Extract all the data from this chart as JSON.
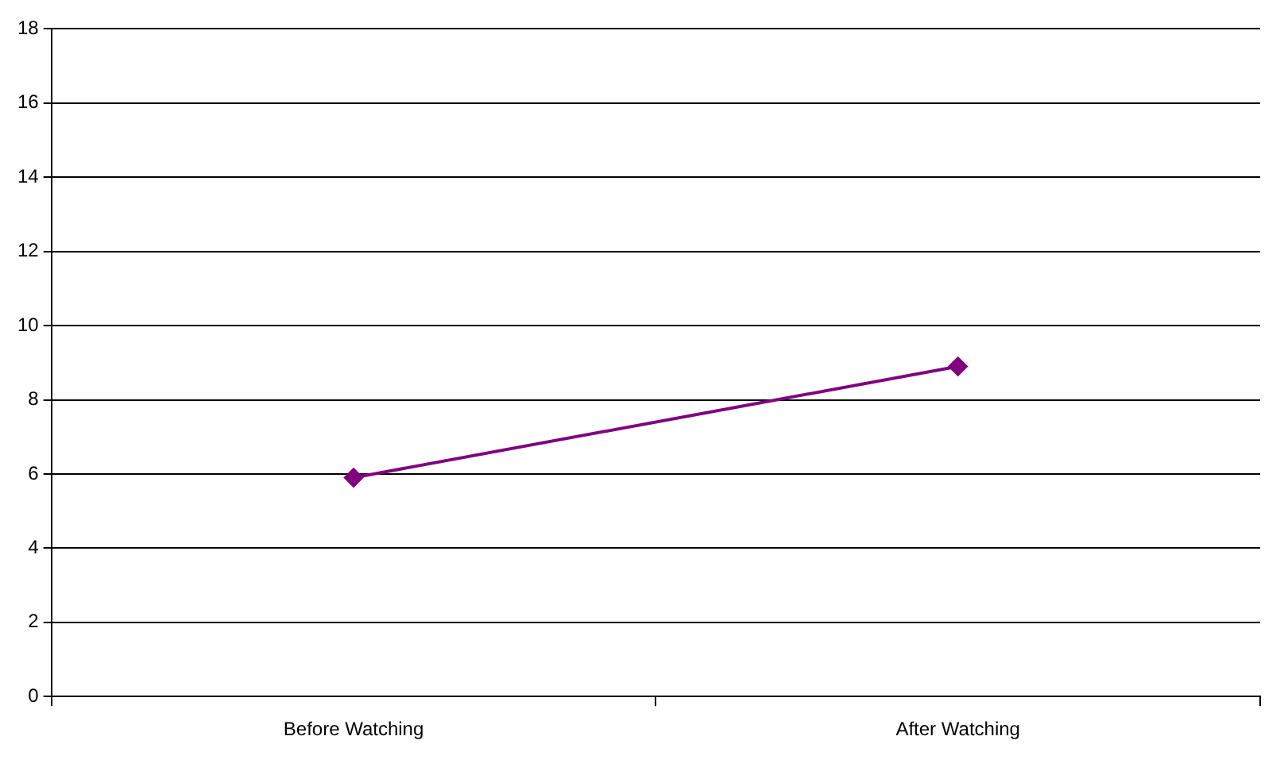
{
  "chart_data": {
    "type": "line",
    "categories": [
      "Before Watching",
      "After Watching"
    ],
    "series": [
      {
        "color": "#800080",
        "values": [
          5.9,
          8.9
        ]
      }
    ],
    "ylim": [
      0,
      18
    ],
    "yticks": [
      0,
      2,
      4,
      6,
      8,
      10,
      12,
      14,
      16,
      18
    ],
    "grid": "y",
    "legend": false,
    "marker": "diamond",
    "line_style": "solid"
  }
}
